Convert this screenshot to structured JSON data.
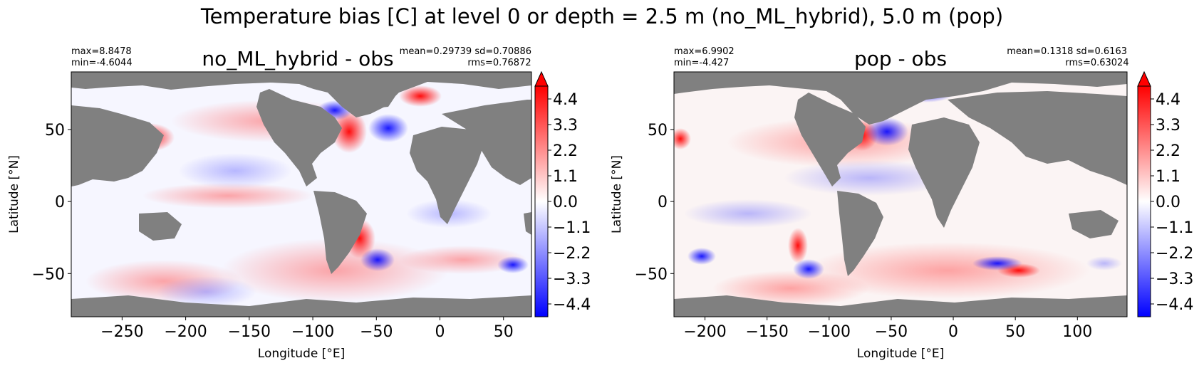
{
  "figure": {
    "suptitle": "Temperature bias [C] at level 0 or depth = 2.5 m (no_ML_hybrid), 5.0 m (pop)"
  },
  "colors": {
    "land": "#808080",
    "cmap_low": "#0000ff",
    "cmap_mid": "#ffffff",
    "cmap_high": "#ff0000"
  },
  "chart_data": [
    {
      "type": "heatmap",
      "title": "no_ML_hybrid - obs",
      "stats_left": [
        "max=8.8478",
        "min=-4.6044"
      ],
      "stats_right": [
        "mean=0.29739 sd=0.70886",
        "rms=0.76872"
      ],
      "xlabel": "Longitude [°E]",
      "ylabel": "Latitude [°N]",
      "xlim": [
        -290,
        72
      ],
      "ylim": [
        -80,
        90
      ],
      "xticks": [
        -250,
        -200,
        -150,
        -100,
        -50,
        0,
        50
      ],
      "xtick_labels": [
        "−250",
        "−200",
        "−150",
        "−100",
        "−50",
        "0",
        "50"
      ],
      "yticks": [
        -50,
        0,
        50
      ],
      "ytick_labels": [
        "−50",
        "0",
        "50"
      ],
      "colorbar": {
        "vmin": -4.95,
        "vmax": 4.95,
        "extend": "max",
        "ticks": [
          4.4,
          3.3,
          2.2,
          1.1,
          0.0,
          -1.1,
          -2.2,
          -3.3,
          -4.4
        ],
        "tick_labels": [
          "4.4",
          "3.3",
          "2.2",
          "1.1",
          "0.0",
          "−1.1",
          "−2.2",
          "−3.3",
          "−4.4"
        ]
      }
    },
    {
      "type": "heatmap",
      "title": "pop - obs",
      "stats_left": [
        "max=6.9902",
        "min=-4.427"
      ],
      "stats_right": [
        "mean=0.1318 sd=0.6163",
        "rms=0.63024"
      ],
      "xlabel": "Longitude [°E]",
      "ylabel": "Latitude [°N]",
      "xlim": [
        -225,
        140
      ],
      "ylim": [
        -80,
        90
      ],
      "xticks": [
        -200,
        -150,
        -100,
        -50,
        0,
        50,
        100
      ],
      "xtick_labels": [
        "−200",
        "−150",
        "−100",
        "−50",
        "0",
        "50",
        "100"
      ],
      "yticks": [
        -50,
        0,
        50
      ],
      "ytick_labels": [
        "−50",
        "0",
        "50"
      ],
      "colorbar": {
        "vmin": -4.95,
        "vmax": 4.95,
        "extend": "max",
        "ticks": [
          4.4,
          3.3,
          2.2,
          1.1,
          0.0,
          -1.1,
          -2.2,
          -3.3,
          -4.4
        ],
        "tick_labels": [
          "4.4",
          "3.3",
          "2.2",
          "1.1",
          "0.0",
          "−1.1",
          "−2.2",
          "−3.3",
          "−4.4"
        ]
      }
    }
  ]
}
